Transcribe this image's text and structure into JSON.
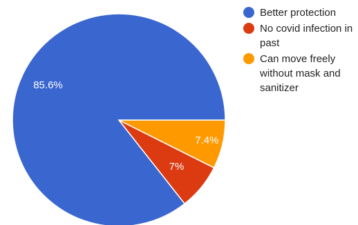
{
  "chart_data": {
    "type": "pie",
    "legend_position": "right",
    "slices": [
      {
        "label": "Better protection",
        "value": 85.6,
        "value_label": "85.6%",
        "color": "#3a66cf"
      },
      {
        "label": "No covid infection in past",
        "value": 7.0,
        "value_label": "7%",
        "color": "#dc3b12"
      },
      {
        "label": "Can move freely without mask and sanitizer",
        "value": 7.4,
        "value_label": "7.4%",
        "color": "#ff9900"
      }
    ]
  }
}
